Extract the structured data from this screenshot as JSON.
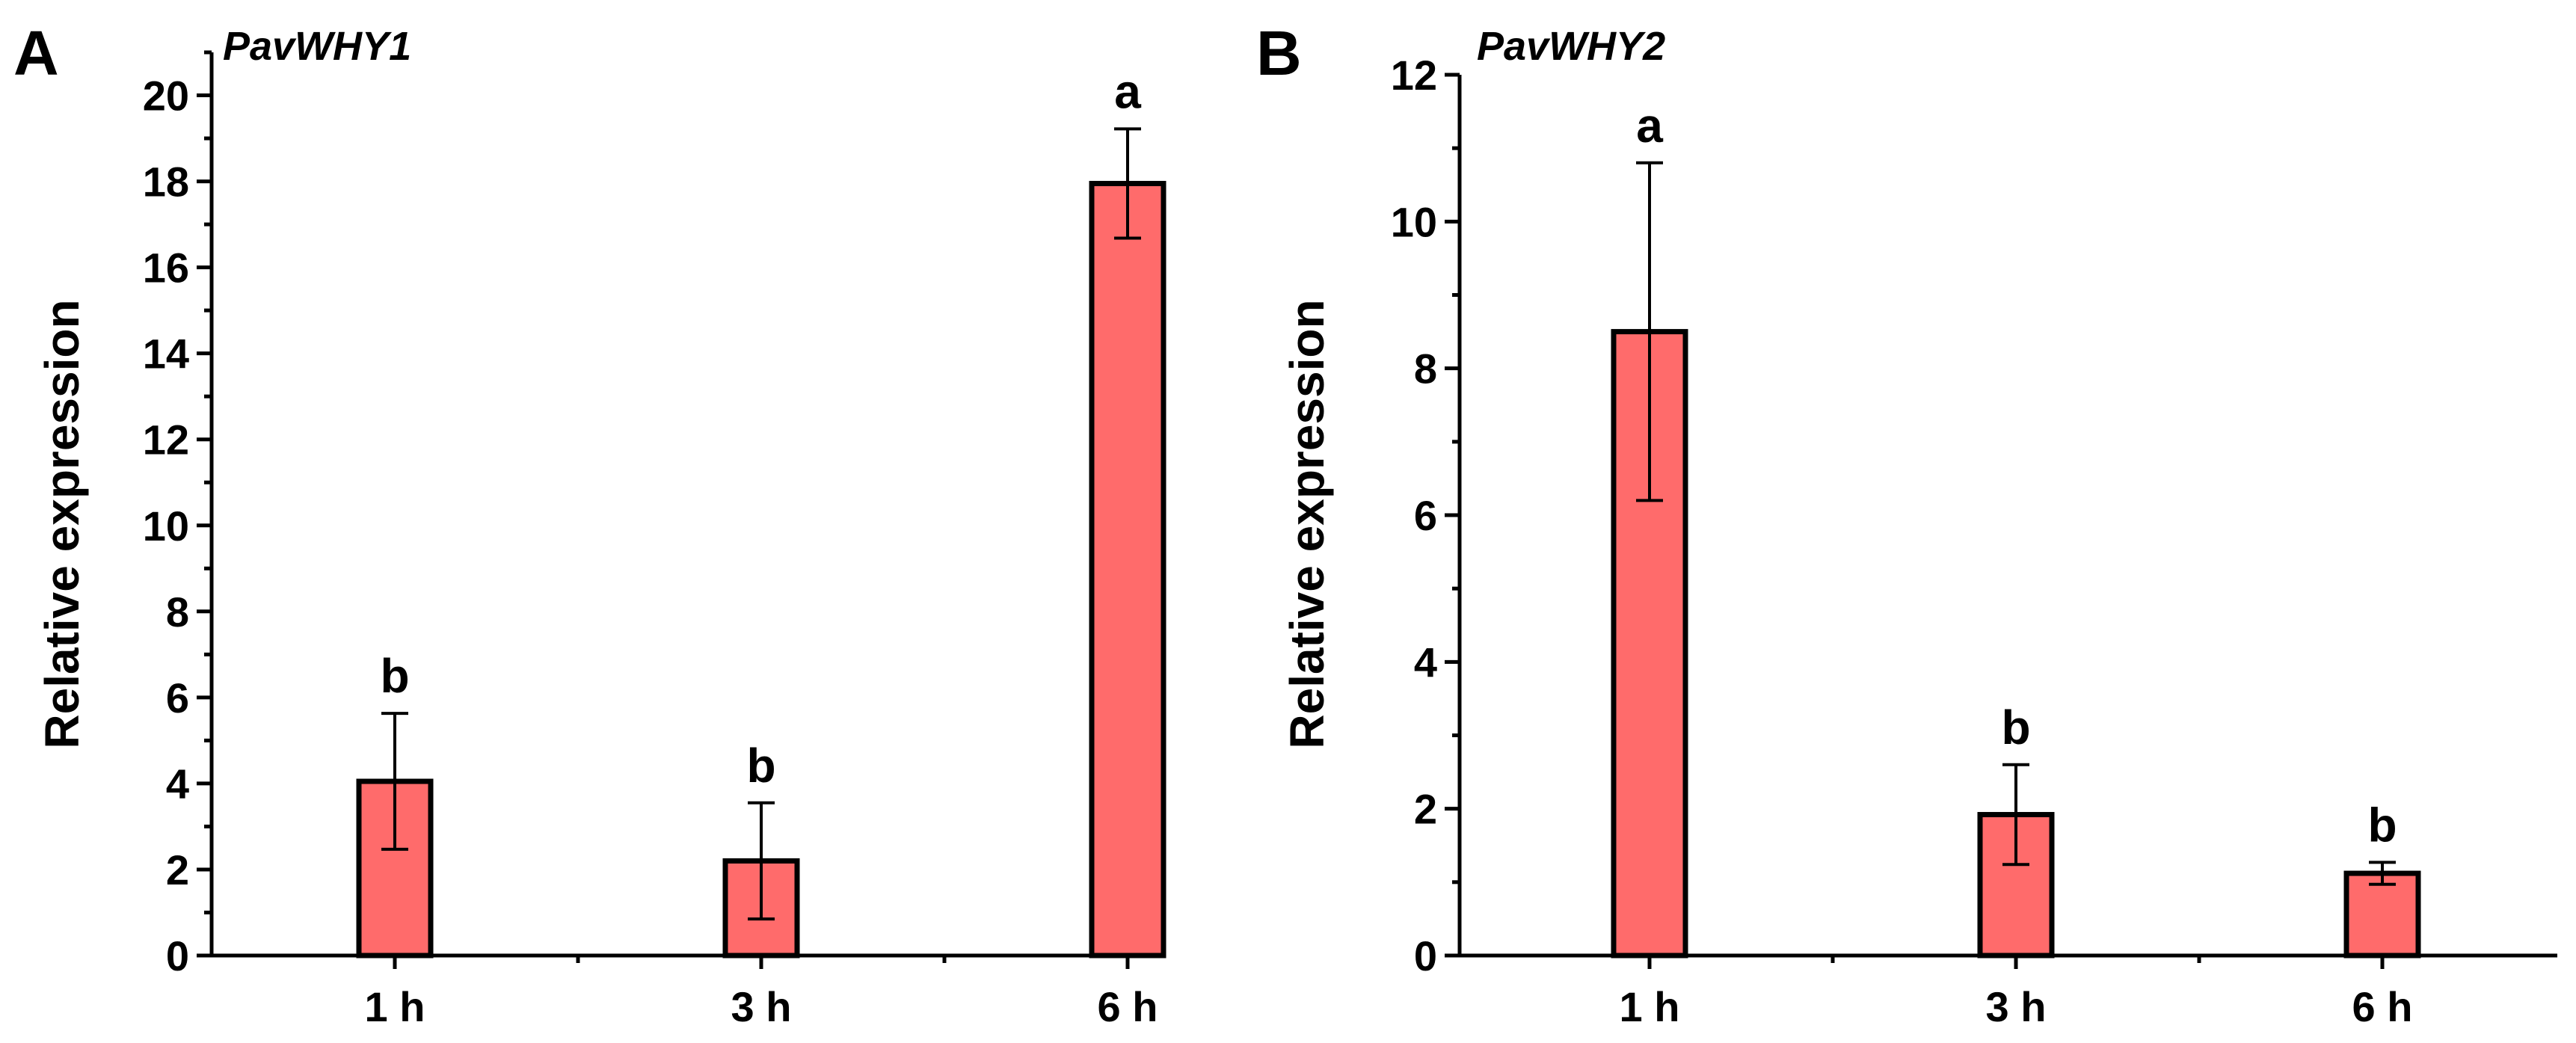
{
  "colors": {
    "bar_fill": "#FF6B6B",
    "stroke": "#000000",
    "background": "#FFFFFF"
  },
  "chart_data": [
    {
      "type": "bar",
      "panel": "A",
      "title": "PavWHY1",
      "xlabel": "",
      "ylabel": "Relative expression",
      "categories": [
        "1 h",
        "3 h",
        "6 h"
      ],
      "values": [
        4.05,
        2.2,
        17.95
      ],
      "errors": [
        1.58,
        1.35,
        1.27
      ],
      "significance": [
        "b",
        "b",
        "a"
      ],
      "ylim": [
        0,
        21
      ],
      "yticks": [
        0,
        2,
        4,
        6,
        8,
        10,
        12,
        14,
        16,
        18,
        20
      ],
      "ytick_labels": [
        "0",
        "2",
        "4",
        "6",
        "8",
        "10",
        "12",
        "14",
        "16",
        "18",
        "20"
      ],
      "minor_ytick_step": 1,
      "grid": false,
      "legend": "none"
    },
    {
      "type": "bar",
      "panel": "B",
      "title": "PavWHY2",
      "xlabel": "",
      "ylabel": "Relative expression",
      "categories": [
        "1 h",
        "3 h",
        "6 h"
      ],
      "values": [
        8.5,
        1.92,
        1.12
      ],
      "errors": [
        2.3,
        0.68,
        0.15
      ],
      "significance": [
        "a",
        "b",
        "b"
      ],
      "ylim": [
        0,
        12
      ],
      "yticks": [
        0,
        2,
        4,
        6,
        8,
        10,
        12
      ],
      "ytick_labels": [
        "0",
        "2",
        "4",
        "6",
        "8",
        "10",
        "12"
      ],
      "minor_ytick_step": 1,
      "grid": false,
      "legend": "none"
    }
  ]
}
